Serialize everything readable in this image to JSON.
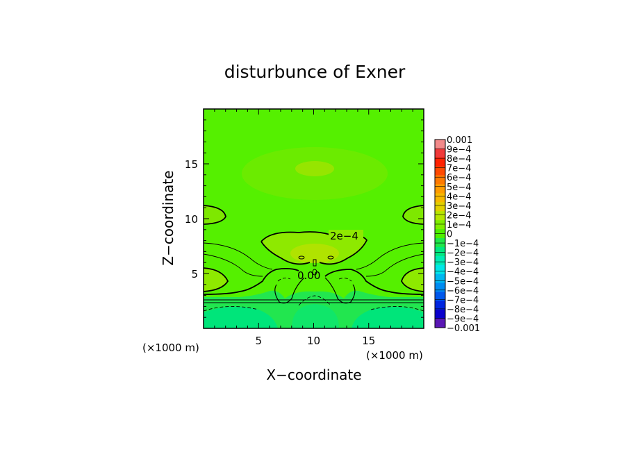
{
  "chart_data": {
    "type": "heatmap",
    "title": "disturbunce of Exner",
    "xlabel": "X−coordinate",
    "ylabel": "Z−coordinate",
    "x_unit": "(×1000 m)",
    "y_unit": "(×1000 m)",
    "xlim": [
      0,
      20
    ],
    "ylim": [
      0,
      20
    ],
    "x_ticks": [
      "5",
      "10",
      "15"
    ],
    "x_tick_values": [
      5,
      10,
      15
    ],
    "y_ticks": [
      "5",
      "10",
      "15"
    ],
    "y_tick_values": [
      5,
      10,
      15
    ],
    "contour_labels": [
      "2e−4",
      "0.00"
    ],
    "colorbar": {
      "labels": [
        "0.001",
        "9e−4",
        "8e−4",
        "7e−4",
        "6e−4",
        "5e−4",
        "4e−4",
        "3e−4",
        "2e−4",
        "1e−4",
        "0",
        "−1e−4",
        "−2e−4",
        "−3e−4",
        "−4e−4",
        "−5e−4",
        "−6e−4",
        "−7e−4",
        "−8e−4",
        "−9e−4",
        "−0.001"
      ],
      "colors": [
        "#f28a8a",
        "#f03a3a",
        "#ff2200",
        "#ff4a00",
        "#ff7a00",
        "#ff9d00",
        "#f7b900",
        "#e2d000",
        "#b7e600",
        "#7fee00",
        "#4ef000",
        "#1fe84a",
        "#00e880",
        "#00ecb4",
        "#00e8e8",
        "#00b8f0",
        "#008cf2",
        "#0058ec",
        "#0026e0",
        "#0a00cc",
        "#5a17b4"
      ],
      "range": [
        -0.001,
        0.001
      ]
    }
  }
}
